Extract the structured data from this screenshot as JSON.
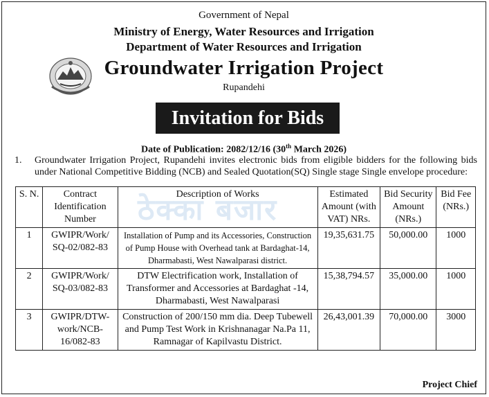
{
  "header": {
    "government": "Government of Nepal",
    "ministry": "Ministry of Energy, Water Resources and Irrigation",
    "department": "Department of Water Resources and Irrigation",
    "project": "Groundwater Irrigation Project",
    "location": "Rupandehi"
  },
  "banner": "Invitation for Bids",
  "publication": {
    "prefix": "Date of Publication: 2082/12/16 (30",
    "sup": "th",
    "suffix": " March 2026)"
  },
  "intro": {
    "number": "1.",
    "text": "Groundwater Irrigation Project, Rupandehi invites electronic bids from eligible bidders for the following bids under National Competitive Bidding (NCB) and Sealed Quotation(SQ) Single stage Single envelope procedure:"
  },
  "table": {
    "headers": {
      "sn": "S. N.",
      "contract": "Contract Identification Number",
      "description": "Description of Works",
      "estimated": "Estimated Amount (with VAT) NRs.",
      "security": "Bid Security Amount (NRs.)",
      "fee": "Bid Fee (NRs.)"
    },
    "rows": [
      {
        "sn": "1",
        "contract": "GWIPR/Work/ SQ-02/082-83",
        "description": "Installation of Pump and its Accessories, Construction of Pump House with Overhead tank at Bardaghat-14, Dharmabasti, West Nawalparasi district.",
        "estimated": "19,35,631.75",
        "security": "50,000.00",
        "fee": "1000"
      },
      {
        "sn": "2",
        "contract": "GWIPR/Work/ SQ-03/082-83",
        "description": "DTW Electrification work, Installation of Transformer and Accessories at Bardaghat -14, Dharmabasti, West Nawalparasi",
        "estimated": "15,38,794.57",
        "security": "35,000.00",
        "fee": "1000"
      },
      {
        "sn": "3",
        "contract": "GWIPR/DTW-work/NCB-16/082-83",
        "description": "Construction of 200/150 mm dia. Deep Tubewell and Pump Test Work in Krishnanagar Na.Pa 11, Ramnagar of Kapilvastu District.",
        "estimated": "26,43,001.39",
        "security": "70,000.00",
        "fee": "3000"
      }
    ]
  },
  "signature": "Project Chief",
  "watermark": "ठेक्का बजार",
  "icons": {
    "emblem": "nepal-emblem-icon"
  }
}
